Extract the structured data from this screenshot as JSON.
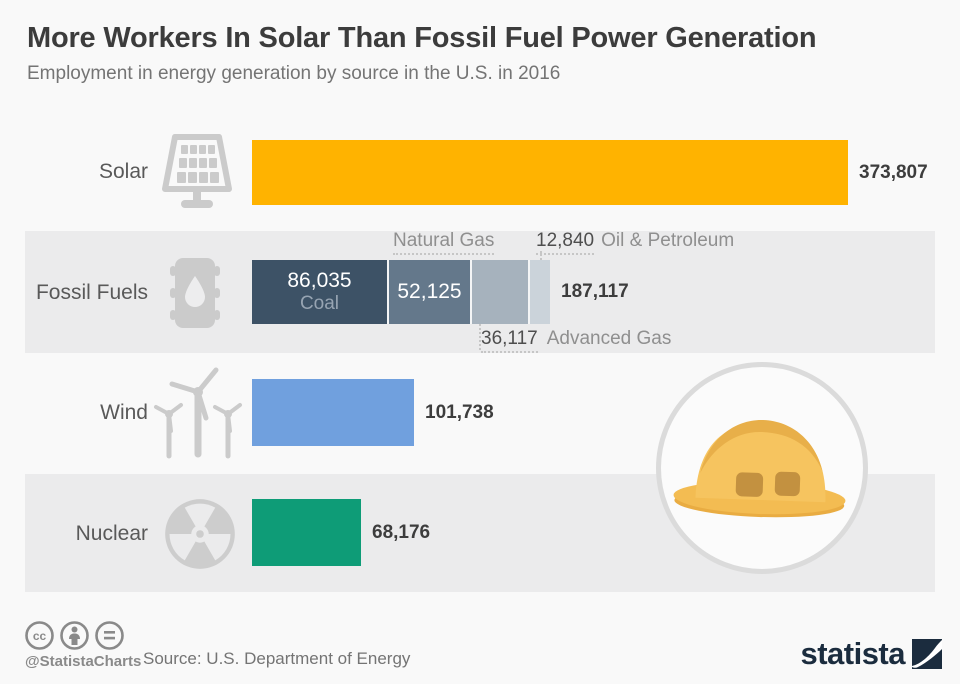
{
  "header": {
    "title": "More Workers In Solar Than Fossil Fuel Power Generation",
    "subtitle": "Employment in energy generation by source in the U.S. in 2016"
  },
  "chart_data": {
    "type": "bar",
    "orientation": "horizontal",
    "unit": "employees",
    "axis": "none",
    "legend": "none",
    "x_max": 373807,
    "categories": [
      "Solar",
      "Fossil Fuels",
      "Wind",
      "Nuclear"
    ],
    "values": [
      373807,
      187117,
      101738,
      68176
    ],
    "value_labels": [
      "373,807",
      "187,117",
      "101,738",
      "68,176"
    ],
    "bar_colors": [
      "#FFB300",
      "stacked",
      "#70A0DE",
      "#0E9C77"
    ],
    "fossil_fuels_breakdown": {
      "total": 187117,
      "segments": [
        {
          "name": "Coal",
          "value": 86035,
          "label": "86,035",
          "color": "#3D5266"
        },
        {
          "name": "Natural Gas",
          "value": 52125,
          "label": "52,125",
          "color": "#64788B"
        },
        {
          "name": "Advanced Gas",
          "value": 36117,
          "label": "36,117",
          "color": "#A6B2BD"
        },
        {
          "name": "Oil & Petroleum",
          "value": 12840,
          "label": "12,840",
          "color": "#CBD3DA"
        }
      ]
    }
  },
  "icons": {
    "solar": "solar-panel-icon",
    "fossil": "oil-barrel-icon",
    "wind": "wind-turbines-icon",
    "nuclear": "radiation-icon",
    "illustration": "hard-hat-illustration"
  },
  "footer": {
    "handle": "@StatistaCharts",
    "source": "Source: U.S. Department of Energy",
    "brand": "statista"
  }
}
